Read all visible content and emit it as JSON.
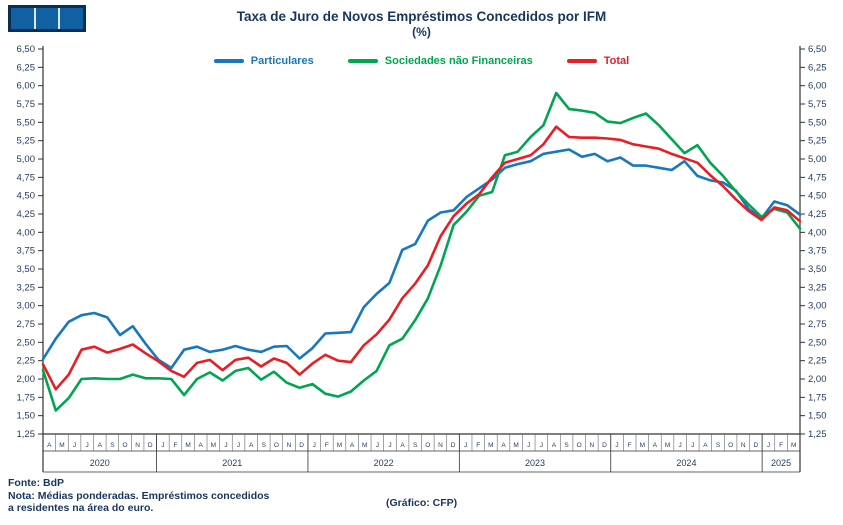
{
  "header": {
    "title": "Taxa de Juro de Novos Empréstimos Concedidos por IFM",
    "subtitle": "(%)"
  },
  "logo": {
    "description": "cfp-logo-three-blue-squares",
    "bg_color": "#0a2e52",
    "square_color": "#1060a2",
    "gap_color": "#d6ebf5",
    "squares": 3
  },
  "legend": {
    "items": [
      {
        "label": "Particulares",
        "color": "#1878be"
      },
      {
        "label": "Sociedades não Financeiras",
        "color": "#00a551"
      },
      {
        "label": "Total",
        "color": "#e81e25"
      }
    ]
  },
  "footer": {
    "source": "Fonte: BdP",
    "note1": "Nota: Médias ponderadas. Empréstimos concedidos",
    "note2": "a residentes na área do euro.",
    "credit": "(Gráfico: CFP)"
  },
  "chart_data": {
    "type": "line",
    "title": "Taxa de Juro de Novos Empréstimos Concedidos por IFM (%)",
    "ylim": [
      1.25,
      6.5
    ],
    "ytick_step": 0.25,
    "grid": false,
    "legend_position": "top",
    "x_start": "Abr 2020",
    "x_end": "Mar 2025",
    "x_months": [
      "A",
      "M",
      "J",
      "J",
      "A",
      "S",
      "O",
      "N",
      "D",
      "J",
      "F",
      "M",
      "A",
      "M",
      "J",
      "J",
      "A",
      "S",
      "O",
      "N",
      "D",
      "J",
      "F",
      "M",
      "A",
      "M",
      "J",
      "J",
      "A",
      "S",
      "O",
      "N",
      "D",
      "J",
      "F",
      "M",
      "A",
      "M",
      "J",
      "J",
      "A",
      "S",
      "O",
      "N",
      "D",
      "J",
      "F",
      "M",
      "A",
      "M",
      "J",
      "J",
      "A",
      "S",
      "O",
      "N",
      "D",
      "J",
      "F",
      "M"
    ],
    "year_groups": [
      {
        "label": "2020",
        "count": 9
      },
      {
        "label": "2021",
        "count": 12
      },
      {
        "label": "2022",
        "count": 12
      },
      {
        "label": "2023",
        "count": 12
      },
      {
        "label": "2024",
        "count": 12
      },
      {
        "label": "2025",
        "count": 3
      }
    ],
    "series": [
      {
        "name": "Particulares",
        "color": "#1878be",
        "values": [
          2.27,
          2.55,
          2.78,
          2.87,
          2.9,
          2.84,
          2.6,
          2.72,
          2.48,
          2.26,
          2.15,
          2.4,
          2.44,
          2.37,
          2.4,
          2.45,
          2.4,
          2.37,
          2.44,
          2.45,
          2.28,
          2.42,
          2.62,
          2.63,
          2.64,
          2.98,
          3.16,
          3.31,
          3.76,
          3.84,
          4.16,
          4.27,
          4.3,
          4.48,
          4.6,
          4.72,
          4.88,
          4.93,
          4.97,
          5.07,
          5.1,
          5.13,
          5.03,
          5.07,
          4.97,
          5.02,
          4.91,
          4.91,
          4.88,
          4.85,
          4.97,
          4.77,
          4.71,
          4.68,
          4.57,
          4.32,
          4.19,
          4.42,
          4.37,
          4.24
        ]
      },
      {
        "name": "Sociedades não Financeiras",
        "color": "#00a551",
        "values": [
          2.12,
          1.57,
          1.74,
          2.0,
          2.01,
          2.0,
          2.0,
          2.06,
          2.01,
          2.01,
          2.0,
          1.78,
          2.0,
          2.09,
          1.98,
          2.11,
          2.15,
          1.99,
          2.1,
          1.95,
          1.88,
          1.93,
          1.8,
          1.76,
          1.83,
          1.98,
          2.11,
          2.46,
          2.55,
          2.8,
          3.1,
          3.55,
          4.1,
          4.28,
          4.5,
          4.55,
          5.05,
          5.1,
          5.3,
          5.46,
          5.9,
          5.68,
          5.66,
          5.63,
          5.51,
          5.49,
          5.56,
          5.62,
          5.46,
          5.27,
          5.08,
          5.19,
          4.95,
          4.77,
          4.56,
          4.38,
          4.21,
          4.32,
          4.27,
          4.05
        ]
      },
      {
        "name": "Total",
        "color": "#e81e25",
        "values": [
          2.2,
          1.86,
          2.06,
          2.4,
          2.44,
          2.36,
          2.41,
          2.47,
          2.35,
          2.24,
          2.11,
          2.03,
          2.22,
          2.26,
          2.12,
          2.26,
          2.29,
          2.17,
          2.28,
          2.22,
          2.06,
          2.21,
          2.33,
          2.25,
          2.23,
          2.46,
          2.61,
          2.81,
          3.1,
          3.3,
          3.55,
          3.95,
          4.22,
          4.39,
          4.52,
          4.75,
          4.95,
          5.0,
          5.05,
          5.2,
          5.44,
          5.3,
          5.29,
          5.29,
          5.28,
          5.26,
          5.2,
          5.17,
          5.14,
          5.07,
          5.01,
          4.95,
          4.78,
          4.63,
          4.45,
          4.29,
          4.17,
          4.34,
          4.3,
          4.15
        ]
      }
    ]
  }
}
